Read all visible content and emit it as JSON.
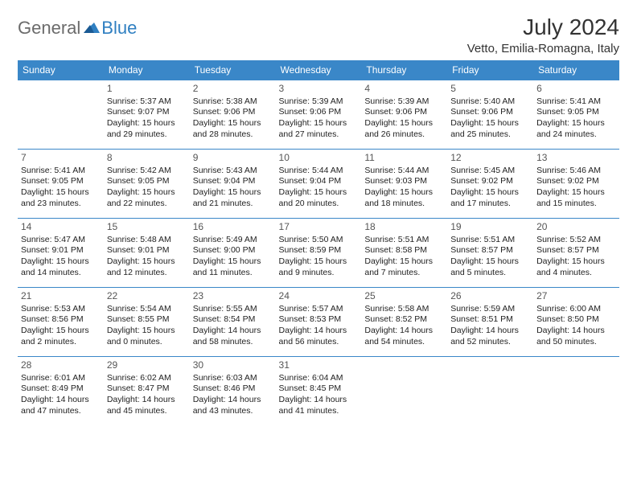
{
  "logo": {
    "text1": "General",
    "text2": "Blue"
  },
  "title": "July 2024",
  "location": "Vetto, Emilia-Romagna, Italy",
  "colors": {
    "header_bg": "#3a87c8",
    "header_text": "#ffffff",
    "cell_border": "#3a87c8",
    "text": "#222222",
    "daynum": "#555555",
    "logo_gray": "#6b6b6b",
    "logo_blue": "#2f7fc1",
    "page_bg": "#ffffff"
  },
  "weekdays": [
    "Sunday",
    "Monday",
    "Tuesday",
    "Wednesday",
    "Thursday",
    "Friday",
    "Saturday"
  ],
  "weeks": [
    [
      null,
      {
        "day": "1",
        "sunrise": "Sunrise: 5:37 AM",
        "sunset": "Sunset: 9:07 PM",
        "daylight": "Daylight: 15 hours and 29 minutes."
      },
      {
        "day": "2",
        "sunrise": "Sunrise: 5:38 AM",
        "sunset": "Sunset: 9:06 PM",
        "daylight": "Daylight: 15 hours and 28 minutes."
      },
      {
        "day": "3",
        "sunrise": "Sunrise: 5:39 AM",
        "sunset": "Sunset: 9:06 PM",
        "daylight": "Daylight: 15 hours and 27 minutes."
      },
      {
        "day": "4",
        "sunrise": "Sunrise: 5:39 AM",
        "sunset": "Sunset: 9:06 PM",
        "daylight": "Daylight: 15 hours and 26 minutes."
      },
      {
        "day": "5",
        "sunrise": "Sunrise: 5:40 AM",
        "sunset": "Sunset: 9:06 PM",
        "daylight": "Daylight: 15 hours and 25 minutes."
      },
      {
        "day": "6",
        "sunrise": "Sunrise: 5:41 AM",
        "sunset": "Sunset: 9:05 PM",
        "daylight": "Daylight: 15 hours and 24 minutes."
      }
    ],
    [
      {
        "day": "7",
        "sunrise": "Sunrise: 5:41 AM",
        "sunset": "Sunset: 9:05 PM",
        "daylight": "Daylight: 15 hours and 23 minutes."
      },
      {
        "day": "8",
        "sunrise": "Sunrise: 5:42 AM",
        "sunset": "Sunset: 9:05 PM",
        "daylight": "Daylight: 15 hours and 22 minutes."
      },
      {
        "day": "9",
        "sunrise": "Sunrise: 5:43 AM",
        "sunset": "Sunset: 9:04 PM",
        "daylight": "Daylight: 15 hours and 21 minutes."
      },
      {
        "day": "10",
        "sunrise": "Sunrise: 5:44 AM",
        "sunset": "Sunset: 9:04 PM",
        "daylight": "Daylight: 15 hours and 20 minutes."
      },
      {
        "day": "11",
        "sunrise": "Sunrise: 5:44 AM",
        "sunset": "Sunset: 9:03 PM",
        "daylight": "Daylight: 15 hours and 18 minutes."
      },
      {
        "day": "12",
        "sunrise": "Sunrise: 5:45 AM",
        "sunset": "Sunset: 9:02 PM",
        "daylight": "Daylight: 15 hours and 17 minutes."
      },
      {
        "day": "13",
        "sunrise": "Sunrise: 5:46 AM",
        "sunset": "Sunset: 9:02 PM",
        "daylight": "Daylight: 15 hours and 15 minutes."
      }
    ],
    [
      {
        "day": "14",
        "sunrise": "Sunrise: 5:47 AM",
        "sunset": "Sunset: 9:01 PM",
        "daylight": "Daylight: 15 hours and 14 minutes."
      },
      {
        "day": "15",
        "sunrise": "Sunrise: 5:48 AM",
        "sunset": "Sunset: 9:01 PM",
        "daylight": "Daylight: 15 hours and 12 minutes."
      },
      {
        "day": "16",
        "sunrise": "Sunrise: 5:49 AM",
        "sunset": "Sunset: 9:00 PM",
        "daylight": "Daylight: 15 hours and 11 minutes."
      },
      {
        "day": "17",
        "sunrise": "Sunrise: 5:50 AM",
        "sunset": "Sunset: 8:59 PM",
        "daylight": "Daylight: 15 hours and 9 minutes."
      },
      {
        "day": "18",
        "sunrise": "Sunrise: 5:51 AM",
        "sunset": "Sunset: 8:58 PM",
        "daylight": "Daylight: 15 hours and 7 minutes."
      },
      {
        "day": "19",
        "sunrise": "Sunrise: 5:51 AM",
        "sunset": "Sunset: 8:57 PM",
        "daylight": "Daylight: 15 hours and 5 minutes."
      },
      {
        "day": "20",
        "sunrise": "Sunrise: 5:52 AM",
        "sunset": "Sunset: 8:57 PM",
        "daylight": "Daylight: 15 hours and 4 minutes."
      }
    ],
    [
      {
        "day": "21",
        "sunrise": "Sunrise: 5:53 AM",
        "sunset": "Sunset: 8:56 PM",
        "daylight": "Daylight: 15 hours and 2 minutes."
      },
      {
        "day": "22",
        "sunrise": "Sunrise: 5:54 AM",
        "sunset": "Sunset: 8:55 PM",
        "daylight": "Daylight: 15 hours and 0 minutes."
      },
      {
        "day": "23",
        "sunrise": "Sunrise: 5:55 AM",
        "sunset": "Sunset: 8:54 PM",
        "daylight": "Daylight: 14 hours and 58 minutes."
      },
      {
        "day": "24",
        "sunrise": "Sunrise: 5:57 AM",
        "sunset": "Sunset: 8:53 PM",
        "daylight": "Daylight: 14 hours and 56 minutes."
      },
      {
        "day": "25",
        "sunrise": "Sunrise: 5:58 AM",
        "sunset": "Sunset: 8:52 PM",
        "daylight": "Daylight: 14 hours and 54 minutes."
      },
      {
        "day": "26",
        "sunrise": "Sunrise: 5:59 AM",
        "sunset": "Sunset: 8:51 PM",
        "daylight": "Daylight: 14 hours and 52 minutes."
      },
      {
        "day": "27",
        "sunrise": "Sunrise: 6:00 AM",
        "sunset": "Sunset: 8:50 PM",
        "daylight": "Daylight: 14 hours and 50 minutes."
      }
    ],
    [
      {
        "day": "28",
        "sunrise": "Sunrise: 6:01 AM",
        "sunset": "Sunset: 8:49 PM",
        "daylight": "Daylight: 14 hours and 47 minutes."
      },
      {
        "day": "29",
        "sunrise": "Sunrise: 6:02 AM",
        "sunset": "Sunset: 8:47 PM",
        "daylight": "Daylight: 14 hours and 45 minutes."
      },
      {
        "day": "30",
        "sunrise": "Sunrise: 6:03 AM",
        "sunset": "Sunset: 8:46 PM",
        "daylight": "Daylight: 14 hours and 43 minutes."
      },
      {
        "day": "31",
        "sunrise": "Sunrise: 6:04 AM",
        "sunset": "Sunset: 8:45 PM",
        "daylight": "Daylight: 14 hours and 41 minutes."
      },
      null,
      null,
      null
    ]
  ]
}
